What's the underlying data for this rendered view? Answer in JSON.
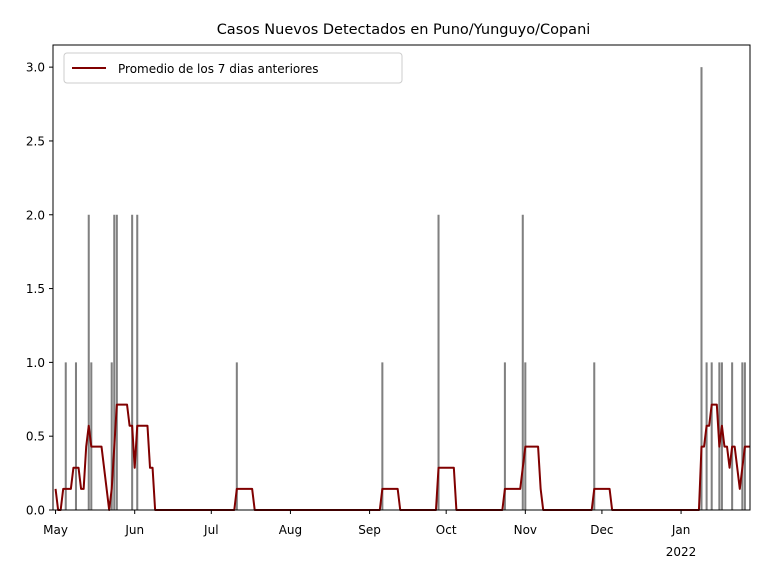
{
  "chart_data": {
    "type": "bar",
    "title": "Casos Nuevos Detectados en Puno/Yunguyo/Copani",
    "xlabel": "",
    "ylabel": "",
    "ylim": [
      0,
      3.15
    ],
    "xlim": [
      "2021-04-30",
      "2022-01-28"
    ],
    "grid": false,
    "legend_position": "top-left",
    "yticks": [
      "0.0",
      "0.5",
      "1.0",
      "1.5",
      "2.0",
      "2.5",
      "3.0"
    ],
    "xticks": [
      {
        "date": "2021-05-01",
        "label": "May",
        "sublabel": ""
      },
      {
        "date": "2021-06-01",
        "label": "Jun",
        "sublabel": ""
      },
      {
        "date": "2021-07-01",
        "label": "Jul",
        "sublabel": ""
      },
      {
        "date": "2021-08-01",
        "label": "Aug",
        "sublabel": ""
      },
      {
        "date": "2021-09-01",
        "label": "Sep",
        "sublabel": ""
      },
      {
        "date": "2021-10-01",
        "label": "Oct",
        "sublabel": ""
      },
      {
        "date": "2021-11-01",
        "label": "Nov",
        "sublabel": ""
      },
      {
        "date": "2021-12-01",
        "label": "Dec",
        "sublabel": ""
      },
      {
        "date": "2022-01-01",
        "label": "Jan",
        "sublabel": "2022"
      }
    ],
    "series": [
      {
        "type": "bar",
        "color": "#808080",
        "points": [
          [
            "2021-05-05",
            1
          ],
          [
            "2021-05-09",
            1
          ],
          [
            "2021-05-14",
            2
          ],
          [
            "2021-05-15",
            1
          ],
          [
            "2021-05-23",
            1
          ],
          [
            "2021-05-24",
            2
          ],
          [
            "2021-05-25",
            2
          ],
          [
            "2021-05-31",
            2
          ],
          [
            "2021-06-02",
            2
          ],
          [
            "2021-07-11",
            1
          ],
          [
            "2021-09-06",
            1
          ],
          [
            "2021-09-28",
            2
          ],
          [
            "2021-10-24",
            1
          ],
          [
            "2021-10-31",
            2
          ],
          [
            "2021-11-01",
            1
          ],
          [
            "2021-11-28",
            1
          ],
          [
            "2022-01-09",
            3
          ],
          [
            "2022-01-11",
            1
          ],
          [
            "2022-01-13",
            1
          ],
          [
            "2022-01-16",
            1
          ],
          [
            "2022-01-17",
            1
          ],
          [
            "2022-01-21",
            1
          ],
          [
            "2022-01-25",
            1
          ],
          [
            "2022-01-26",
            1
          ]
        ]
      },
      {
        "type": "line",
        "name": "Promedio de los 7 dias anteriores",
        "color": "#800000",
        "points": [
          [
            "2021-05-01",
            0.143
          ],
          [
            "2021-05-02",
            0
          ],
          [
            "2021-05-03",
            0
          ],
          [
            "2021-05-04",
            0.143
          ],
          [
            "2021-05-07",
            0.143
          ],
          [
            "2021-05-08",
            0.286
          ],
          [
            "2021-05-10",
            0.286
          ],
          [
            "2021-05-11",
            0.143
          ],
          [
            "2021-05-12",
            0.143
          ],
          [
            "2021-05-13",
            0.429
          ],
          [
            "2021-05-14",
            0.571
          ],
          [
            "2021-05-15",
            0.429
          ],
          [
            "2021-05-19",
            0.429
          ],
          [
            "2021-05-21",
            0.143
          ],
          [
            "2021-05-22",
            0
          ],
          [
            "2021-05-23",
            0.143
          ],
          [
            "2021-05-24",
            0.429
          ],
          [
            "2021-05-25",
            0.714
          ],
          [
            "2021-05-29",
            0.714
          ],
          [
            "2021-05-30",
            0.571
          ],
          [
            "2021-05-31",
            0.571
          ],
          [
            "2021-06-01",
            0.286
          ],
          [
            "2021-06-02",
            0.571
          ],
          [
            "2021-06-06",
            0.571
          ],
          [
            "2021-06-07",
            0.286
          ],
          [
            "2021-06-08",
            0.286
          ],
          [
            "2021-06-09",
            0
          ],
          [
            "2021-07-10",
            0
          ],
          [
            "2021-07-11",
            0.143
          ],
          [
            "2021-07-17",
            0.143
          ],
          [
            "2021-07-18",
            0
          ],
          [
            "2021-09-05",
            0
          ],
          [
            "2021-09-06",
            0.143
          ],
          [
            "2021-09-12",
            0.143
          ],
          [
            "2021-09-13",
            0
          ],
          [
            "2021-09-27",
            0
          ],
          [
            "2021-09-28",
            0.286
          ],
          [
            "2021-10-04",
            0.286
          ],
          [
            "2021-10-05",
            0
          ],
          [
            "2021-10-23",
            0
          ],
          [
            "2021-10-24",
            0.143
          ],
          [
            "2021-10-30",
            0.143
          ],
          [
            "2021-10-31",
            0.286
          ],
          [
            "2021-11-01",
            0.429
          ],
          [
            "2021-11-06",
            0.429
          ],
          [
            "2021-11-07",
            0.143
          ],
          [
            "2021-11-08",
            0
          ],
          [
            "2021-11-27",
            0
          ],
          [
            "2021-11-28",
            0.143
          ],
          [
            "2021-12-04",
            0.143
          ],
          [
            "2021-12-05",
            0
          ],
          [
            "2022-01-08",
            0
          ],
          [
            "2022-01-09",
            0.429
          ],
          [
            "2022-01-10",
            0.429
          ],
          [
            "2022-01-11",
            0.571
          ],
          [
            "2022-01-12",
            0.571
          ],
          [
            "2022-01-13",
            0.714
          ],
          [
            "2022-01-15",
            0.714
          ],
          [
            "2022-01-16",
            0.429
          ],
          [
            "2022-01-17",
            0.571
          ],
          [
            "2022-01-18",
            0.429
          ],
          [
            "2022-01-19",
            0.429
          ],
          [
            "2022-01-20",
            0.286
          ],
          [
            "2022-01-21",
            0.429
          ],
          [
            "2022-01-22",
            0.429
          ],
          [
            "2022-01-23",
            0.286
          ],
          [
            "2022-01-24",
            0.143
          ],
          [
            "2022-01-25",
            0.286
          ],
          [
            "2022-01-26",
            0.429
          ],
          [
            "2022-01-28",
            0.429
          ]
        ]
      }
    ]
  }
}
